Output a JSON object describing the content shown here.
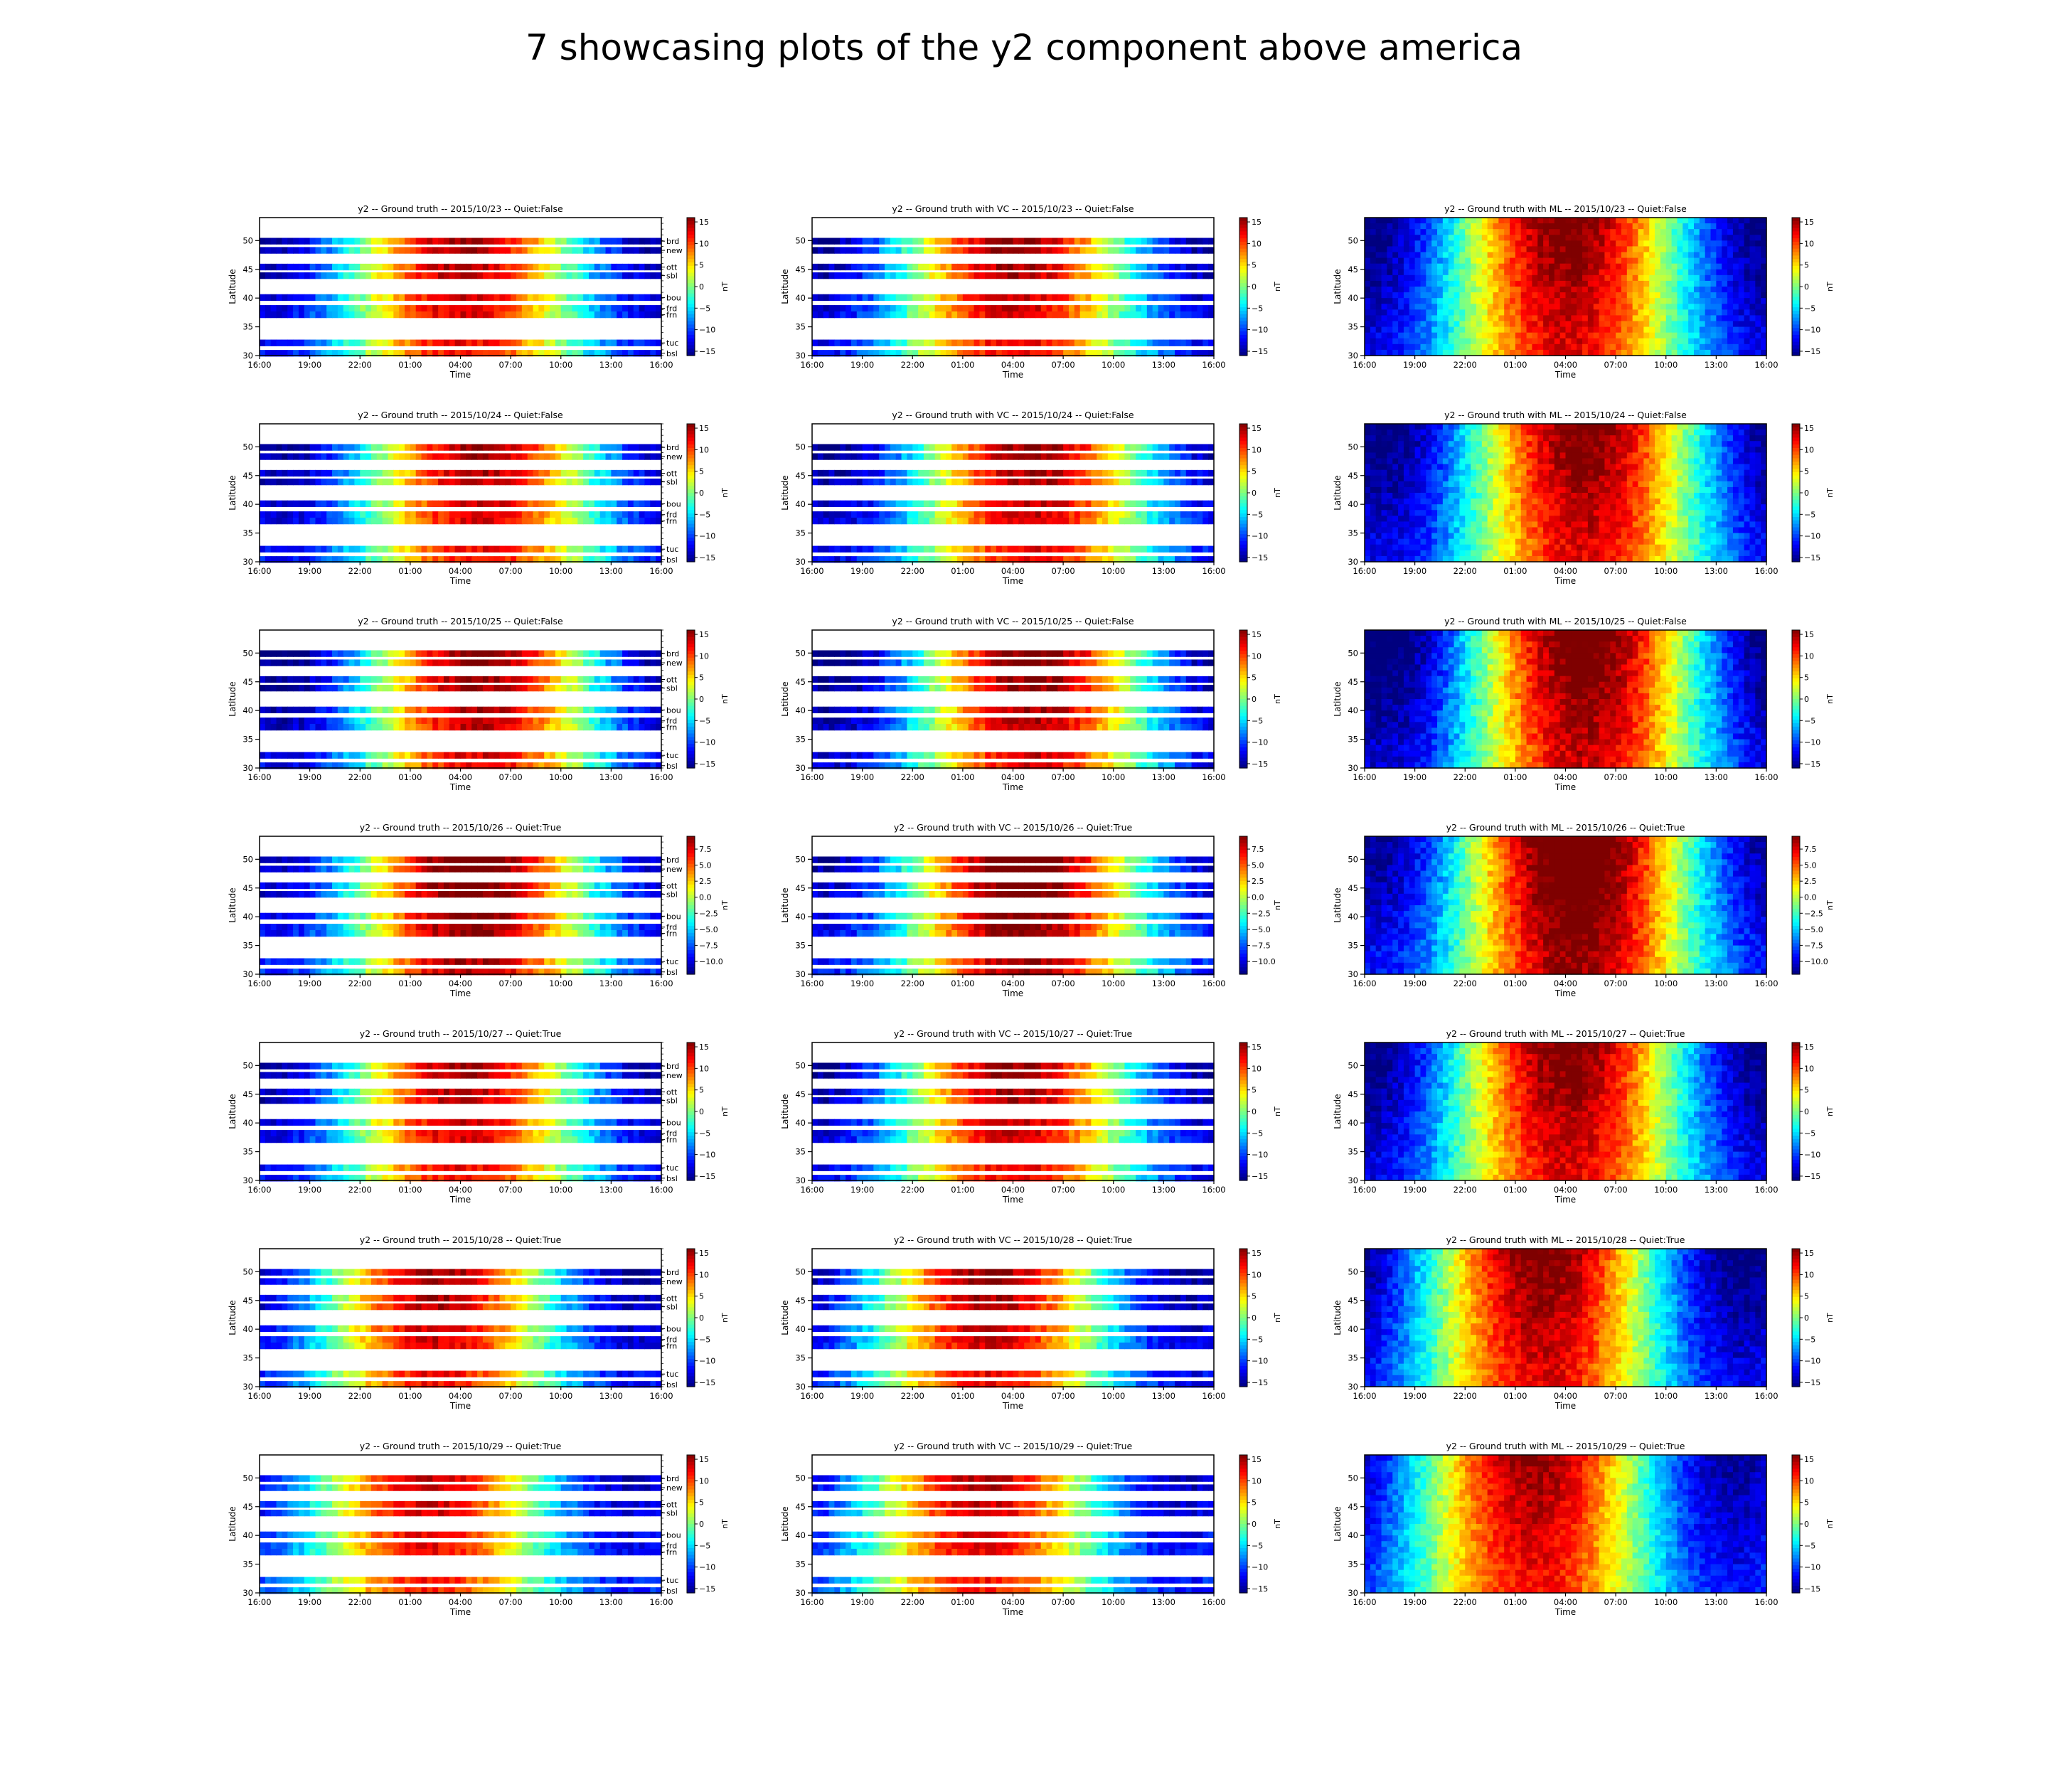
{
  "title": "7 showcasing plots of the y2 component above america",
  "colormap": [
    "#00007f",
    "#0000ff",
    "#007fff",
    "#00ffff",
    "#7fff7f",
    "#ffff00",
    "#ff7f00",
    "#ff0000",
    "#7f0000"
  ],
  "chart_data": {
    "type": "heatmap",
    "xlabel": "Time",
    "ylabel": "Latitude",
    "colorbar_label": "nT",
    "x_ticks": [
      "16:00",
      "19:00",
      "22:00",
      "01:00",
      "04:00",
      "07:00",
      "10:00",
      "13:00",
      "16:00"
    ],
    "y_ticks": [
      30,
      35,
      40,
      45,
      50
    ],
    "ylim": [
      30,
      54
    ],
    "stations": [
      {
        "code": "brd",
        "lat": 49.9
      },
      {
        "code": "new",
        "lat": 48.3
      },
      {
        "code": "ott",
        "lat": 45.4
      },
      {
        "code": "sbl",
        "lat": 43.9
      },
      {
        "code": "bou",
        "lat": 40.1
      },
      {
        "code": "frd",
        "lat": 38.2
      },
      {
        "code": "frn",
        "lat": 37.1
      },
      {
        "code": "tuc",
        "lat": 32.2
      },
      {
        "code": "bsl",
        "lat": 30.4
      }
    ],
    "column_titles": [
      "Ground truth",
      "Ground truth with VC",
      "Ground truth with ML"
    ],
    "days": [
      {
        "date": "2015/10/23",
        "quiet": "Quiet:False",
        "peak_hour": 4.0,
        "amplitude": 14,
        "cbar_ticks": [
          "15",
          "10",
          "5",
          "0",
          "−5",
          "−10",
          "−15"
        ],
        "cbar_range": [
          -16,
          16
        ]
      },
      {
        "date": "2015/10/24",
        "quiet": "Quiet:False",
        "peak_hour": 5.0,
        "amplitude": 14,
        "cbar_ticks": [
          "15",
          "10",
          "5",
          "0",
          "−5",
          "−10",
          "−15"
        ],
        "cbar_range": [
          -16,
          16
        ]
      },
      {
        "date": "2015/10/25",
        "quiet": "Quiet:False",
        "peak_hour": 5.0,
        "amplitude": 15,
        "cbar_ticks": [
          "15",
          "10",
          "5",
          "0",
          "−5",
          "−10",
          "−15"
        ],
        "cbar_range": [
          -16,
          16
        ]
      },
      {
        "date": "2015/10/26",
        "quiet": "Quiet:True",
        "peak_hour": 4.5,
        "amplitude": 10,
        "cbar_ticks": [
          "7.5",
          "5.0",
          "2.5",
          "0.0",
          "−2.5",
          "−5.0",
          "−7.5",
          "−10.0"
        ],
        "cbar_range": [
          -12,
          9.5
        ]
      },
      {
        "date": "2015/10/27",
        "quiet": "Quiet:True",
        "peak_hour": 4.0,
        "amplitude": 14,
        "cbar_ticks": [
          "15",
          "10",
          "5",
          "0",
          "−5",
          "−10",
          "−15"
        ],
        "cbar_range": [
          -16,
          16
        ]
      },
      {
        "date": "2015/10/28",
        "quiet": "Quiet:True",
        "peak_hour": 2.5,
        "amplitude": 14,
        "cbar_ticks": [
          "15",
          "10",
          "5",
          "0",
          "−5",
          "−10",
          "−15"
        ],
        "cbar_range": [
          -16,
          16
        ]
      },
      {
        "date": "2015/10/29",
        "quiet": "Quiet:True",
        "peak_hour": 2.0,
        "amplitude": 13,
        "cbar_ticks": [
          "15",
          "10",
          "5",
          "0",
          "−5",
          "−10",
          "−15"
        ],
        "cbar_range": [
          -16,
          16
        ]
      }
    ]
  }
}
